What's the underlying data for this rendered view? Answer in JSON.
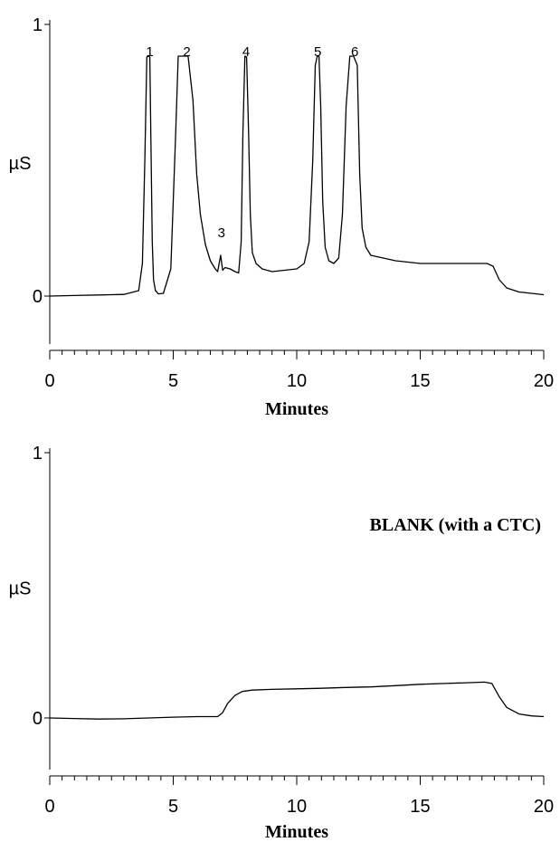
{
  "chart_data": [
    {
      "type": "line",
      "xlabel": "Minutes",
      "ylabel": "µS",
      "xlim": [
        0,
        20
      ],
      "ylim": [
        -0.2,
        1
      ],
      "x_ticks": [
        "0",
        "5",
        "10",
        "15",
        "20"
      ],
      "y_ticks": [
        "0",
        "1"
      ],
      "annotation": "",
      "peaks": [
        {
          "label": "1",
          "x": 4.05
        },
        {
          "label": "2",
          "x": 5.55
        },
        {
          "label": "3",
          "x": 6.95
        },
        {
          "label": "4",
          "x": 7.95
        },
        {
          "label": "5",
          "x": 10.85
        },
        {
          "label": "6",
          "x": 12.35
        }
      ],
      "series": [
        {
          "x": [
            0,
            1,
            2,
            3,
            3.6,
            3.75,
            3.85,
            3.93,
            4.0,
            4.05,
            4.1,
            4.15,
            4.2,
            4.28,
            4.4,
            4.6,
            4.9,
            5.1,
            5.2,
            5.4,
            5.6,
            5.8,
            5.95,
            6.1,
            6.3,
            6.5,
            6.7,
            6.8,
            6.92,
            7.0,
            7.1,
            7.3,
            7.5,
            7.65,
            7.75,
            7.82,
            7.9,
            7.97,
            8.05,
            8.12,
            8.2,
            8.35,
            8.6,
            9.0,
            9.5,
            10.0,
            10.3,
            10.5,
            10.65,
            10.75,
            10.83,
            10.9,
            10.97,
            11.05,
            11.15,
            11.3,
            11.5,
            11.7,
            11.85,
            12.0,
            12.15,
            12.3,
            12.45,
            12.55,
            12.65,
            12.8,
            13.0,
            13.5,
            14.0,
            15.0,
            16.0,
            17.0,
            17.7,
            17.95,
            18.2,
            18.5,
            19.0,
            19.5,
            20.0
          ],
          "y": [
            0.0,
            0.002,
            0.004,
            0.006,
            0.02,
            0.12,
            0.5,
            0.88,
            0.95,
            0.88,
            0.55,
            0.2,
            0.06,
            0.02,
            0.008,
            0.01,
            0.1,
            0.6,
            0.96,
            0.99,
            0.9,
            0.72,
            0.45,
            0.3,
            0.19,
            0.13,
            0.1,
            0.09,
            0.15,
            0.095,
            0.105,
            0.1,
            0.09,
            0.085,
            0.2,
            0.6,
            0.93,
            0.88,
            0.6,
            0.3,
            0.16,
            0.12,
            0.1,
            0.09,
            0.095,
            0.1,
            0.12,
            0.2,
            0.5,
            0.85,
            0.95,
            0.92,
            0.7,
            0.35,
            0.18,
            0.13,
            0.12,
            0.14,
            0.3,
            0.7,
            0.97,
            0.98,
            0.85,
            0.45,
            0.25,
            0.18,
            0.15,
            0.14,
            0.13,
            0.12,
            0.12,
            0.12,
            0.12,
            0.11,
            0.06,
            0.03,
            0.015,
            0.01,
            0.005
          ]
        }
      ]
    },
    {
      "type": "line",
      "xlabel": "Minutes",
      "ylabel": "µS",
      "xlim": [
        0,
        20
      ],
      "ylim": [
        -0.2,
        1
      ],
      "x_ticks": [
        "0",
        "5",
        "10",
        "15",
        "20"
      ],
      "y_ticks": [
        "0",
        "1"
      ],
      "annotation": "BLANK (with a CTC)",
      "peaks": [],
      "series": [
        {
          "x": [
            0,
            1,
            2,
            3,
            4,
            5,
            6,
            6.8,
            7.0,
            7.2,
            7.5,
            7.8,
            8.2,
            9,
            10,
            11,
            12,
            13,
            14,
            15,
            16,
            17,
            17.6,
            17.9,
            18.2,
            18.5,
            19.0,
            19.5,
            20.0
          ],
          "y": [
            0.0,
            -0.002,
            -0.004,
            -0.003,
            0.0,
            0.003,
            0.005,
            0.005,
            0.02,
            0.055,
            0.085,
            0.1,
            0.105,
            0.108,
            0.11,
            0.112,
            0.115,
            0.117,
            0.122,
            0.127,
            0.13,
            0.133,
            0.135,
            0.13,
            0.08,
            0.04,
            0.015,
            0.008,
            0.005
          ]
        }
      ]
    }
  ]
}
